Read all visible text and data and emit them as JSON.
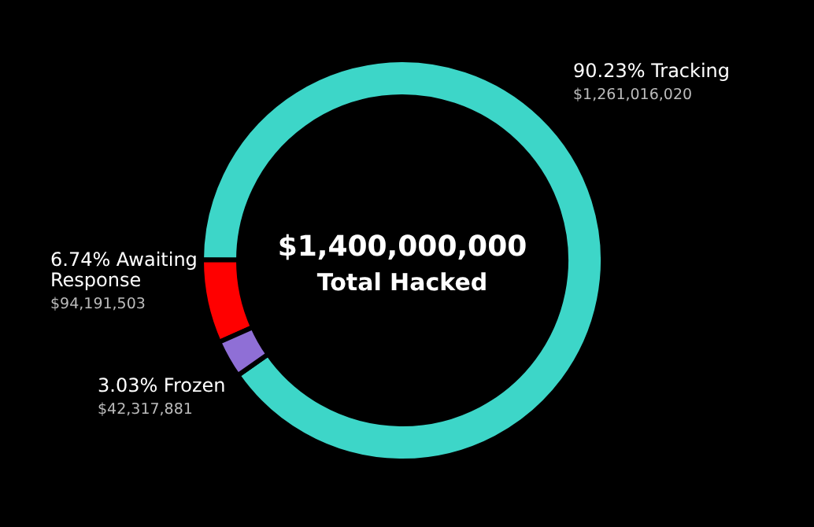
{
  "chart_data": {
    "type": "donut",
    "categories": [
      "90.23% Tracking",
      "6.74% Awaiting Response",
      "3.03% Frozen"
    ],
    "values": [
      1261016020,
      94191503,
      42317881
    ],
    "colors": [
      "#3dd6c8",
      "#ff0000",
      "#8f6fd6"
    ],
    "value_labels": [
      "$1,261,016,020",
      "$94,191,503",
      "$42,317,881"
    ],
    "annotations": [
      "$1,400,000,000",
      "Total Hacked"
    ]
  }
}
